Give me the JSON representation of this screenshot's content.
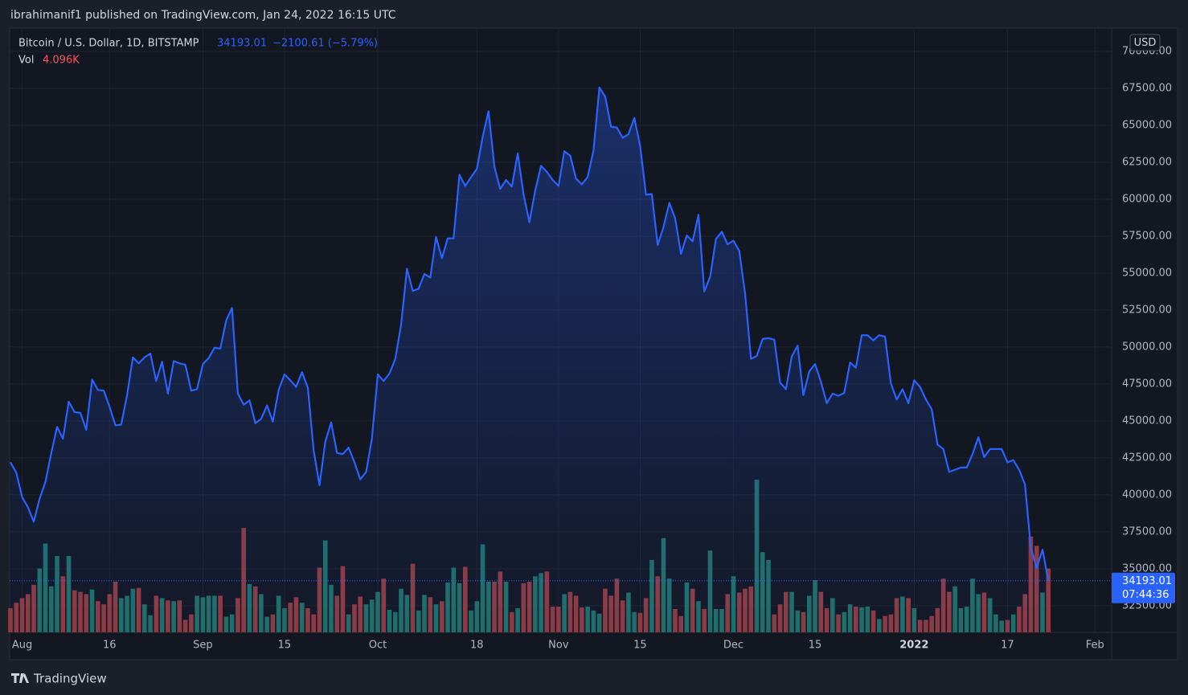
{
  "header": {
    "byline": "ibrahimanif1 published on TradingView.com, Jan 24, 2022 16:15 UTC",
    "logo_text": "TradingView"
  },
  "chart_data": {
    "type": "area",
    "title": "Bitcoin / U.S. Dollar, 1D, BITSTAMP",
    "change_label": "−2100.61 (−5.79%)",
    "countdown": "07:44:36",
    "currency": "USD",
    "volume_title": "Vol",
    "last_volume_label": "4.096K",
    "x": [
      "2021-07-30",
      "2021-07-31",
      "2021-08-01",
      "2021-08-02",
      "2021-08-03",
      "2021-08-04",
      "2021-08-05",
      "2021-08-06",
      "2021-08-07",
      "2021-08-08",
      "2021-08-09",
      "2021-08-10",
      "2021-08-11",
      "2021-08-12",
      "2021-08-13",
      "2021-08-14",
      "2021-08-15",
      "2021-08-16",
      "2021-08-17",
      "2021-08-18",
      "2021-08-19",
      "2021-08-20",
      "2021-08-21",
      "2021-08-22",
      "2021-08-23",
      "2021-08-24",
      "2021-08-25",
      "2021-08-26",
      "2021-08-27",
      "2021-08-28",
      "2021-08-29",
      "2021-08-30",
      "2021-08-31",
      "2021-09-01",
      "2021-09-02",
      "2021-09-03",
      "2021-09-04",
      "2021-09-05",
      "2021-09-06",
      "2021-09-07",
      "2021-09-08",
      "2021-09-09",
      "2021-09-10",
      "2021-09-11",
      "2021-09-12",
      "2021-09-13",
      "2021-09-14",
      "2021-09-15",
      "2021-09-16",
      "2021-09-17",
      "2021-09-18",
      "2021-09-19",
      "2021-09-20",
      "2021-09-21",
      "2021-09-22",
      "2021-09-23",
      "2021-09-24",
      "2021-09-25",
      "2021-09-26",
      "2021-09-27",
      "2021-09-28",
      "2021-09-29",
      "2021-09-30",
      "2021-10-01",
      "2021-10-02",
      "2021-10-03",
      "2021-10-04",
      "2021-10-05",
      "2021-10-06",
      "2021-10-07",
      "2021-10-08",
      "2021-10-09",
      "2021-10-10",
      "2021-10-11",
      "2021-10-12",
      "2021-10-13",
      "2021-10-14",
      "2021-10-15",
      "2021-10-16",
      "2021-10-17",
      "2021-10-18",
      "2021-10-19",
      "2021-10-20",
      "2021-10-21",
      "2021-10-22",
      "2021-10-23",
      "2021-10-24",
      "2021-10-25",
      "2021-10-26",
      "2021-10-27",
      "2021-10-28",
      "2021-10-29",
      "2021-10-30",
      "2021-10-31",
      "2021-11-01",
      "2021-11-02",
      "2021-11-03",
      "2021-11-04",
      "2021-11-05",
      "2021-11-06",
      "2021-11-07",
      "2021-11-08",
      "2021-11-09",
      "2021-11-10",
      "2021-11-11",
      "2021-11-12",
      "2021-11-13",
      "2021-11-14",
      "2021-11-15",
      "2021-11-16",
      "2021-11-17",
      "2021-11-18",
      "2021-11-19",
      "2021-11-20",
      "2021-11-21",
      "2021-11-22",
      "2021-11-23",
      "2021-11-24",
      "2021-11-25",
      "2021-11-26",
      "2021-11-27",
      "2021-11-28",
      "2021-11-29",
      "2021-11-30",
      "2021-12-01",
      "2021-12-02",
      "2021-12-03",
      "2021-12-04",
      "2021-12-05",
      "2021-12-06",
      "2021-12-07",
      "2021-12-08",
      "2021-12-09",
      "2021-12-10",
      "2021-12-11",
      "2021-12-12",
      "2021-12-13",
      "2021-12-14",
      "2021-12-15",
      "2021-12-16",
      "2021-12-17",
      "2021-12-18",
      "2021-12-19",
      "2021-12-20",
      "2021-12-21",
      "2021-12-22",
      "2021-12-23",
      "2021-12-24",
      "2021-12-25",
      "2021-12-26",
      "2021-12-27",
      "2021-12-28",
      "2021-12-29",
      "2021-12-30",
      "2021-12-31",
      "2022-01-01",
      "2022-01-02",
      "2022-01-03",
      "2022-01-04",
      "2022-01-05",
      "2022-01-06",
      "2022-01-07",
      "2022-01-08",
      "2022-01-09",
      "2022-01-10",
      "2022-01-11",
      "2022-01-12",
      "2022-01-13",
      "2022-01-14",
      "2022-01-15",
      "2022-01-16",
      "2022-01-17",
      "2022-01-18",
      "2022-01-19",
      "2022-01-20",
      "2022-01-21",
      "2022-01-22",
      "2022-01-23",
      "2022-01-24"
    ],
    "series": [
      {
        "color": "#2962ff",
        "values": [
          42200,
          41500,
          39850,
          39150,
          38180,
          39740,
          40870,
          42830,
          44600,
          43800,
          46300,
          45600,
          45550,
          44400,
          47800,
          47100,
          47050,
          45950,
          44700,
          44750,
          46750,
          49300,
          48900,
          49300,
          49550,
          47700,
          49000,
          46850,
          49050,
          48900,
          48800,
          47050,
          47150,
          48850,
          49250,
          49950,
          49900,
          51800,
          52650,
          46850,
          46100,
          46400,
          44850,
          45150,
          46050,
          44950,
          47100,
          48150,
          47750,
          47300,
          48300,
          47250,
          43000,
          40650,
          43600,
          44900,
          42850,
          42750,
          43200,
          42200,
          41050,
          41550,
          43800,
          48150,
          47700,
          48200,
          49200,
          51500,
          55300,
          53800,
          53950,
          54950,
          54700,
          57450,
          56000,
          57350,
          57350,
          61650,
          60900,
          61500,
          62050,
          64250,
          65950,
          62200,
          60700,
          61300,
          60850,
          63100,
          60350,
          58450,
          60600,
          62250,
          61850,
          61300,
          60900,
          63250,
          62950,
          61400,
          61000,
          61500,
          63300,
          67550,
          66950,
          64900,
          64850,
          64150,
          64400,
          65500,
          63600,
          60300,
          60350,
          56900,
          58100,
          59750,
          58700,
          56300,
          57550,
          57150,
          58950,
          53750,
          54750,
          57300,
          57800,
          56950,
          57200,
          56500,
          53600,
          49200,
          49400,
          50550,
          50600,
          50500,
          47600,
          47150,
          49350,
          50100,
          46750,
          48350,
          48850,
          47650,
          46200,
          46850,
          46700,
          46900,
          48950,
          48600,
          50800,
          50800,
          50450,
          50800,
          50700,
          47550,
          46450,
          47150,
          46200,
          47750,
          47300,
          46450,
          45800,
          43400,
          43100,
          41550,
          41700,
          41850,
          41850,
          42750,
          43900,
          42550,
          43100,
          43100,
          43100,
          42200,
          42350,
          41700,
          40700,
          36450,
          35050,
          36293.62,
          34193.01
        ]
      },
      {
        "type": "bar",
        "axis": "volume",
        "up_color": "#1f6e68",
        "down_color": "#8e3a40",
        "values": [
          1550,
          1900,
          2200,
          2450,
          3050,
          4100,
          5700,
          2950,
          4900,
          3600,
          4900,
          2700,
          2600,
          2450,
          2750,
          2000,
          1800,
          2450,
          3250,
          2200,
          2350,
          2800,
          2850,
          1800,
          1100,
          2350,
          2200,
          2050,
          2000,
          2050,
          800,
          1150,
          2350,
          2250,
          2350,
          2350,
          2350,
          1000,
          1150,
          2200,
          6700,
          3100,
          2950,
          2450,
          1000,
          1150,
          2350,
          1550,
          1900,
          2250,
          1900,
          1550,
          1150,
          4150,
          5900,
          3050,
          2350,
          4250,
          1150,
          1800,
          2300,
          1800,
          2100,
          2600,
          3450,
          1450,
          1300,
          2800,
          2400,
          4400,
          1400,
          2400,
          2250,
          1800,
          2000,
          3200,
          4150,
          3150,
          4200,
          1400,
          2000,
          5650,
          3250,
          3250,
          3900,
          3250,
          1300,
          1550,
          3150,
          3250,
          3600,
          3800,
          3900,
          1650,
          1650,
          2450,
          2600,
          2350,
          1600,
          1650,
          1400,
          1200,
          2800,
          2350,
          3450,
          2050,
          2550,
          1300,
          1250,
          2200,
          4650,
          3600,
          6050,
          3450,
          1500,
          1050,
          3200,
          2800,
          2000,
          1500,
          5250,
          1500,
          1500,
          2450,
          3600,
          2550,
          2800,
          2950,
          9800,
          5150,
          4650,
          1150,
          1800,
          2600,
          2600,
          1400,
          1300,
          2350,
          3350,
          2600,
          1550,
          2200,
          1150,
          1300,
          1800,
          1650,
          1600,
          1650,
          1400,
          850,
          1050,
          1150,
          2200,
          2300,
          2200,
          1550,
          800,
          800,
          1050,
          1550,
          3450,
          2600,
          2950,
          1550,
          1650,
          3450,
          2450,
          2550,
          2200,
          1150,
          750,
          800,
          1150,
          1650,
          2450,
          6150,
          5550,
          2550,
          4096
        ]
      }
    ],
    "xlim": [
      "2021-07-30",
      "2022-02-04"
    ],
    "xticks": [
      {
        "value": "2021-08-01",
        "label": "Aug"
      },
      {
        "value": "2021-08-16",
        "label": "16"
      },
      {
        "value": "2021-09-01",
        "label": "Sep"
      },
      {
        "value": "2021-09-15",
        "label": "15"
      },
      {
        "value": "2021-10-01",
        "label": "Oct"
      },
      {
        "value": "2021-10-18",
        "label": "18"
      },
      {
        "value": "2021-11-01",
        "label": "Nov"
      },
      {
        "value": "2021-11-15",
        "label": "15"
      },
      {
        "value": "2021-12-01",
        "label": "Dec"
      },
      {
        "value": "2021-12-15",
        "label": "15"
      },
      {
        "value": "2022-01-01",
        "label": "2022"
      },
      {
        "value": "2022-01-17",
        "label": "17"
      },
      {
        "value": "2022-02-01",
        "label": "Feb"
      }
    ],
    "ylim": [
      30700,
      71520
    ],
    "yticks": [
      {
        "value": 32500,
        "label": "32500.00"
      },
      {
        "value": 35000,
        "label": "35000.00"
      },
      {
        "value": 37500,
        "label": "37500.00"
      },
      {
        "value": 40000,
        "label": "40000.00"
      },
      {
        "value": 42500,
        "label": "42500.00"
      },
      {
        "value": 45000,
        "label": "45000.00"
      },
      {
        "value": 47500,
        "label": "47500.00"
      },
      {
        "value": 50000,
        "label": "50000.00"
      },
      {
        "value": 52500,
        "label": "52500.00"
      },
      {
        "value": 55000,
        "label": "55000.00"
      },
      {
        "value": 57500,
        "label": "57500.00"
      },
      {
        "value": 60000,
        "label": "60000.00"
      },
      {
        "value": 62500,
        "label": "62500.00"
      },
      {
        "value": 65000,
        "label": "65000.00"
      },
      {
        "value": 67500,
        "label": "67500.00"
      },
      {
        "value": 70000,
        "label": "70000.00"
      }
    ],
    "grid": true
  }
}
